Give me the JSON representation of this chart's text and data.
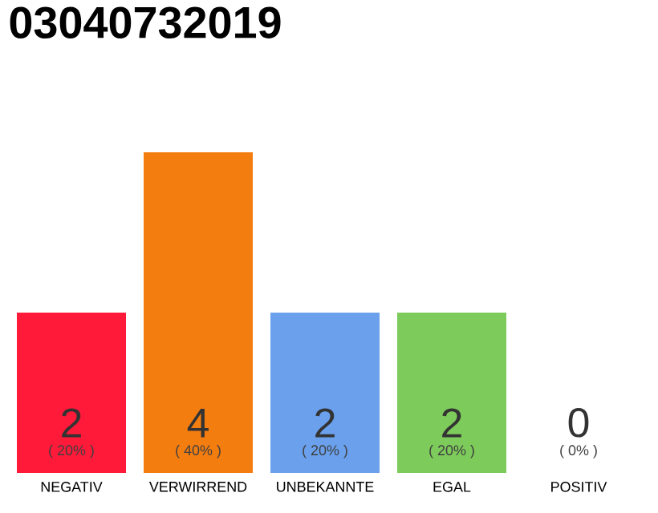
{
  "chart_data": {
    "type": "bar",
    "title": "03040732019",
    "categories": [
      "NEGATIV",
      "VERWIRREND",
      "UNBEKANNTE",
      "EGAL",
      "POSITIV"
    ],
    "values": [
      20,
      40,
      20,
      20,
      0
    ],
    "colors": [
      "#ff1a3a",
      "#f47d10",
      "#6aa0ec",
      "#7dcb5b",
      "#e0e0e0"
    ],
    "value_labels": [
      "( 20% )",
      "( 40% )",
      "( 20% )",
      "( 20% )",
      "( 0% )"
    ],
    "annotations": [
      {
        "text": "2",
        "x": "NEGATIV",
        "y": 0
      },
      {
        "text": "4",
        "x": "VERWIRREND",
        "y": 0
      },
      {
        "text": "2",
        "x": "UNBEKANNTE",
        "y": 0
      },
      {
        "text": "2",
        "x": "EGAL",
        "y": 0
      },
      {
        "text": "0",
        "x": "POSITIV",
        "y": 0
      }
    ],
    "ylim": [
      0,
      40
    ]
  }
}
